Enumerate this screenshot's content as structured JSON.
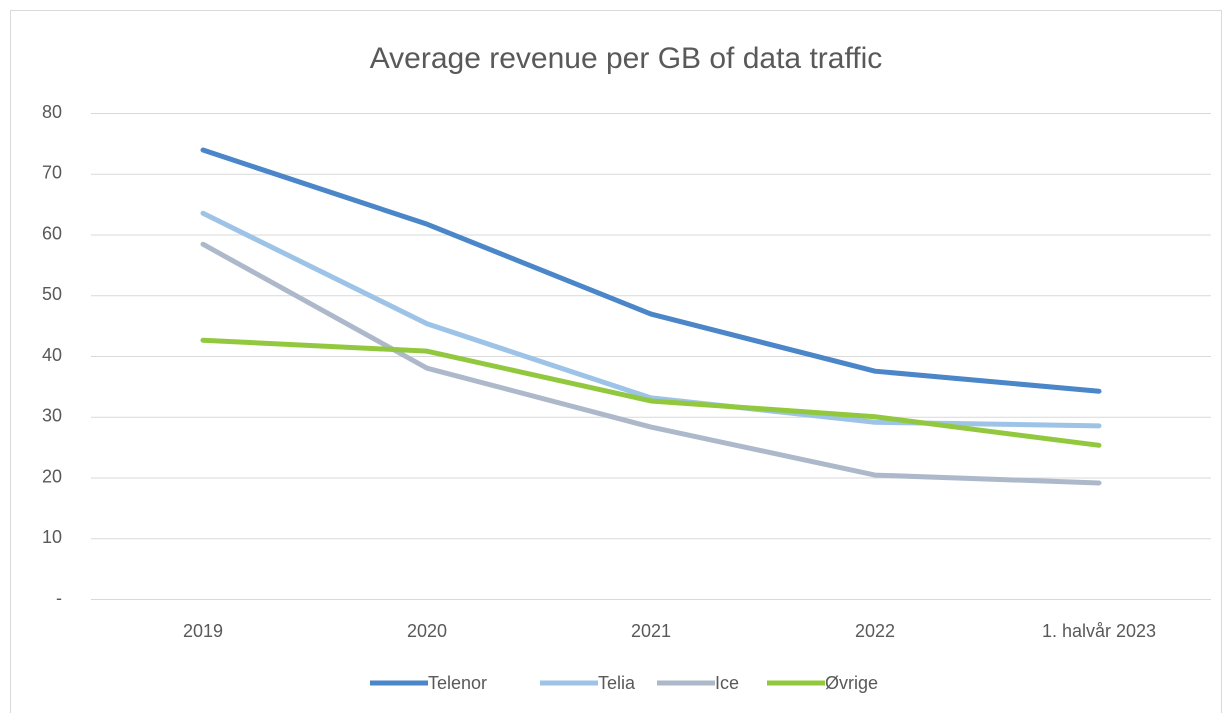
{
  "chart_data": {
    "type": "line",
    "title": "Average revenue per GB of data traffic",
    "categories": [
      "2019",
      "2020",
      "2021",
      "2022",
      "1. halvår 2023"
    ],
    "series": [
      {
        "name": "Telenor",
        "color": "#4a86c8",
        "values": [
          73.9,
          61.7,
          46.9,
          37.5,
          34.2
        ]
      },
      {
        "name": "Telia",
        "color": "#9dc3e6",
        "values": [
          63.5,
          45.3,
          33.1,
          29.1,
          28.5
        ]
      },
      {
        "name": "Ice",
        "color": "#adb9ca",
        "values": [
          58.4,
          38.0,
          28.3,
          20.4,
          19.1
        ]
      },
      {
        "name": "Øvrige",
        "color": "#92c83e",
        "values": [
          42.6,
          40.8,
          32.6,
          30.0,
          25.3
        ]
      }
    ],
    "ylim": [
      0,
      80
    ],
    "yticks": [
      {
        "value": 0,
        "label": "-"
      },
      10,
      20,
      30,
      40,
      50,
      60,
      70,
      80
    ],
    "grid": true,
    "legend": "bottom"
  }
}
